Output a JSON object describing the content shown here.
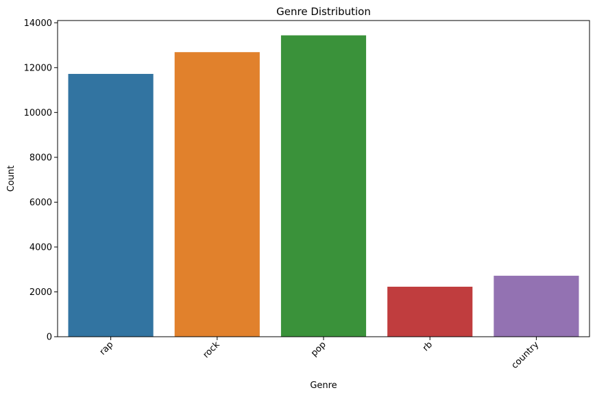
{
  "chart_data": {
    "type": "bar",
    "title": "Genre Distribution",
    "xlabel": "Genre",
    "ylabel": "Count",
    "categories": [
      "rap",
      "rock",
      "pop",
      "rb",
      "country"
    ],
    "values": [
      11720,
      12690,
      13440,
      2230,
      2720
    ],
    "colors": [
      "#3274a1",
      "#e1812c",
      "#3a923a",
      "#c03d3e",
      "#9372b2"
    ],
    "ylim": [
      0,
      14100
    ],
    "yticks": [
      0,
      2000,
      4000,
      6000,
      8000,
      10000,
      12000,
      14000
    ],
    "ytick_labels": [
      "0",
      "2000",
      "4000",
      "6000",
      "8000",
      "10000",
      "12000",
      "14000"
    ],
    "grid": false,
    "legend": "none"
  }
}
